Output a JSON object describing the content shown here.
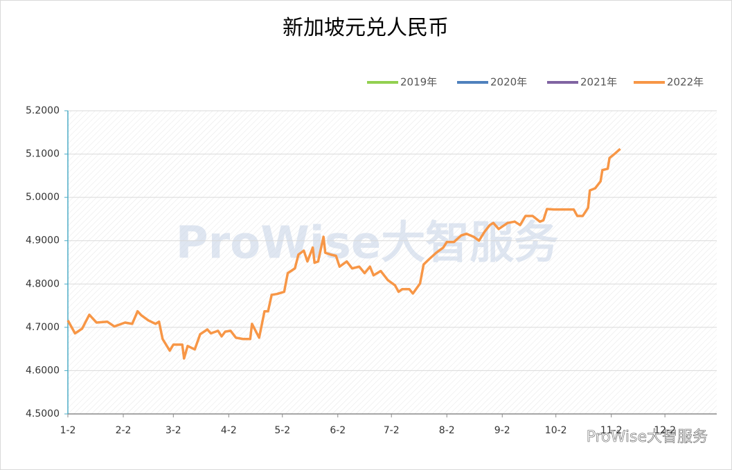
{
  "chart_data": {
    "type": "line",
    "title": "新加坡元兑人民币",
    "watermark": "ProWise大智服务",
    "series": [
      {
        "name": "2019年",
        "color": "#92d050",
        "x": [],
        "values": []
      },
      {
        "name": "2020年",
        "color": "#4f81bd",
        "x": [],
        "values": []
      },
      {
        "name": "2021年",
        "color": "#8064a2",
        "x": [],
        "values": []
      },
      {
        "name": "2022年",
        "color": "#f79646",
        "x": [
          0,
          4,
          8,
          12,
          16,
          22,
          26,
          32,
          36,
          39,
          41,
          45,
          49,
          51,
          53,
          57,
          59,
          64,
          65,
          67,
          71,
          74,
          78,
          80,
          84,
          86,
          88,
          91,
          94,
          98,
          102,
          103,
          107,
          110,
          112,
          114,
          117,
          121,
          123,
          127,
          129,
          132,
          134,
          137,
          138,
          140,
          143,
          144,
          147,
          150,
          152,
          156,
          159,
          163,
          166,
          169,
          171,
          175,
          179,
          183,
          185,
          187,
          191,
          193,
          197,
          199,
          202,
          206,
          210,
          212,
          216,
          220,
          223,
          227,
          230,
          233,
          236,
          238,
          241,
          246,
          250,
          253,
          256,
          260,
          264,
          266,
          268,
          272,
          278,
          283,
          285,
          288,
          291,
          292,
          295,
          298,
          299,
          302,
          303,
          306,
          309
        ],
        "values": [
          4.716,
          4.686,
          4.697,
          4.729,
          4.711,
          4.713,
          4.702,
          4.711,
          4.708,
          4.737,
          4.728,
          4.716,
          4.708,
          4.713,
          4.673,
          4.646,
          4.66,
          4.66,
          4.628,
          4.657,
          4.649,
          4.684,
          4.695,
          4.686,
          4.692,
          4.679,
          4.69,
          4.692,
          4.676,
          4.673,
          4.673,
          4.708,
          4.676,
          4.737,
          4.737,
          4.775,
          4.777,
          4.782,
          4.825,
          4.836,
          4.868,
          4.877,
          4.852,
          4.884,
          4.849,
          4.852,
          4.909,
          4.872,
          4.868,
          4.865,
          4.84,
          4.852,
          4.836,
          4.84,
          4.825,
          4.84,
          4.82,
          4.83,
          4.809,
          4.797,
          4.782,
          4.788,
          4.788,
          4.778,
          4.801,
          4.845,
          4.857,
          4.872,
          4.884,
          4.897,
          4.897,
          4.912,
          4.916,
          4.909,
          4.9,
          4.92,
          4.936,
          4.941,
          4.927,
          4.941,
          4.944,
          4.936,
          4.957,
          4.957,
          4.944,
          4.947,
          4.973,
          4.972,
          4.972,
          4.972,
          4.957,
          4.957,
          4.976,
          5.016,
          5.021,
          5.037,
          5.063,
          5.066,
          5.091,
          5.101,
          5.112
        ]
      }
    ],
    "xlim": [
      0,
      363
    ],
    "xticks": [
      {
        "value": 0,
        "label": "1-2"
      },
      {
        "value": 31,
        "label": "2-2"
      },
      {
        "value": 59,
        "label": "3-2"
      },
      {
        "value": 90,
        "label": "4-2"
      },
      {
        "value": 120,
        "label": "5-2"
      },
      {
        "value": 151,
        "label": "6-2"
      },
      {
        "value": 181,
        "label": "7-2"
      },
      {
        "value": 212,
        "label": "8-2"
      },
      {
        "value": 243,
        "label": "9-2"
      },
      {
        "value": 273,
        "label": "10-2"
      },
      {
        "value": 304,
        "label": "11-2"
      },
      {
        "value": 334,
        "label": "12-2"
      }
    ],
    "ylim": [
      4.5,
      5.2
    ],
    "yticks": [
      {
        "value": 4.5,
        "label": "4.5000"
      },
      {
        "value": 4.6,
        "label": "4.6000"
      },
      {
        "value": 4.7,
        "label": "4.7000"
      },
      {
        "value": 4.8,
        "label": "4.8000"
      },
      {
        "value": 4.9,
        "label": "4.9000"
      },
      {
        "value": 5.0,
        "label": "5.0000"
      },
      {
        "value": 5.1,
        "label": "5.1000"
      },
      {
        "value": 5.2,
        "label": "5.2000"
      }
    ],
    "grid": true,
    "legend": "top-right"
  }
}
